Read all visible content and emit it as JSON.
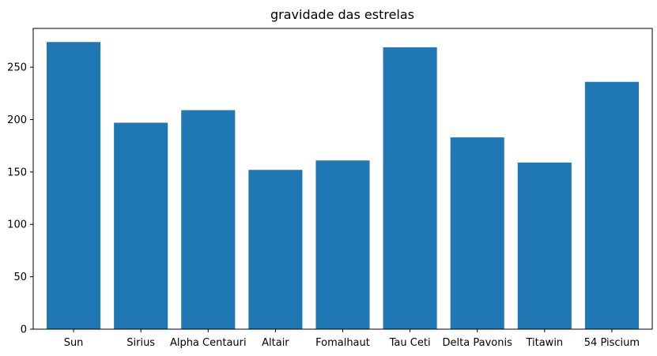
{
  "chart_data": {
    "type": "bar",
    "title": "gravidade das estrelas",
    "xlabel": "",
    "ylabel": "",
    "categories": [
      "Sun",
      "Sirius",
      "Alpha Centauri",
      "Altair",
      "Fomalhaut",
      "Tau Ceti",
      "Delta Pavonis",
      "Titawin",
      "54 Piscium"
    ],
    "values": [
      274,
      197,
      209,
      152,
      161,
      269,
      183,
      159,
      236
    ],
    "ylim": [
      0,
      287
    ],
    "yticks": [
      0,
      50,
      100,
      150,
      200,
      250
    ],
    "bar_color": "#1f77b4",
    "grid": false,
    "legend": "none"
  }
}
